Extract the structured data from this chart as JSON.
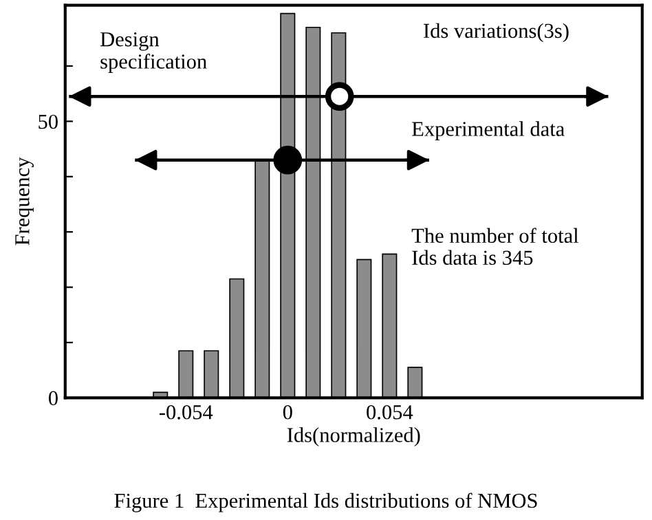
{
  "chart_data": {
    "type": "bar",
    "xlabel": "Ids(normalized)",
    "ylabel": "Frequency",
    "x": [
      -0.0675,
      -0.054,
      -0.0405,
      -0.027,
      -0.0135,
      0,
      0.0135,
      0.027,
      0.0405,
      0.054,
      0.0675
    ],
    "series": [
      {
        "color": "#8c8c8c",
        "values": [
          1,
          8.5,
          8.5,
          21.5,
          43,
          69.5,
          67,
          66,
          25,
          26,
          5.5
        ]
      },
      {
        "type": "scatter",
        "color": "#ffffff",
        "marker": "circle",
        "x": [
          0.0275
        ],
        "values": [
          54.5
        ],
        "xerrors": [
          [
            -0.116,
            0.17
          ]
        ]
      },
      {
        "type": "scatter",
        "color": "#000000",
        "marker": "circle",
        "x": [
          0
        ],
        "values": [
          43
        ],
        "xerrors": [
          [
            -0.081,
            0.075
          ]
        ]
      }
    ],
    "xlim": [
      -0.118,
      0.188
    ],
    "ylim": [
      0,
      71
    ],
    "xticks": [
      -0.054,
      0,
      0.054
    ],
    "yticks": [
      0,
      {
        "value": 10,
        "label": null
      },
      {
        "value": 20,
        "label": null
      },
      {
        "value": 30,
        "label": null
      },
      {
        "value": 40,
        "label": null
      },
      50,
      {
        "value": 60,
        "label": null
      }
    ],
    "annotations": [
      "Design\nspecification",
      "Ids variations(3s)",
      "Experimental data",
      "The number of total\nIds data is 345",
      "Figure 1  Experimental Ids distributions of NMOS"
    ]
  }
}
